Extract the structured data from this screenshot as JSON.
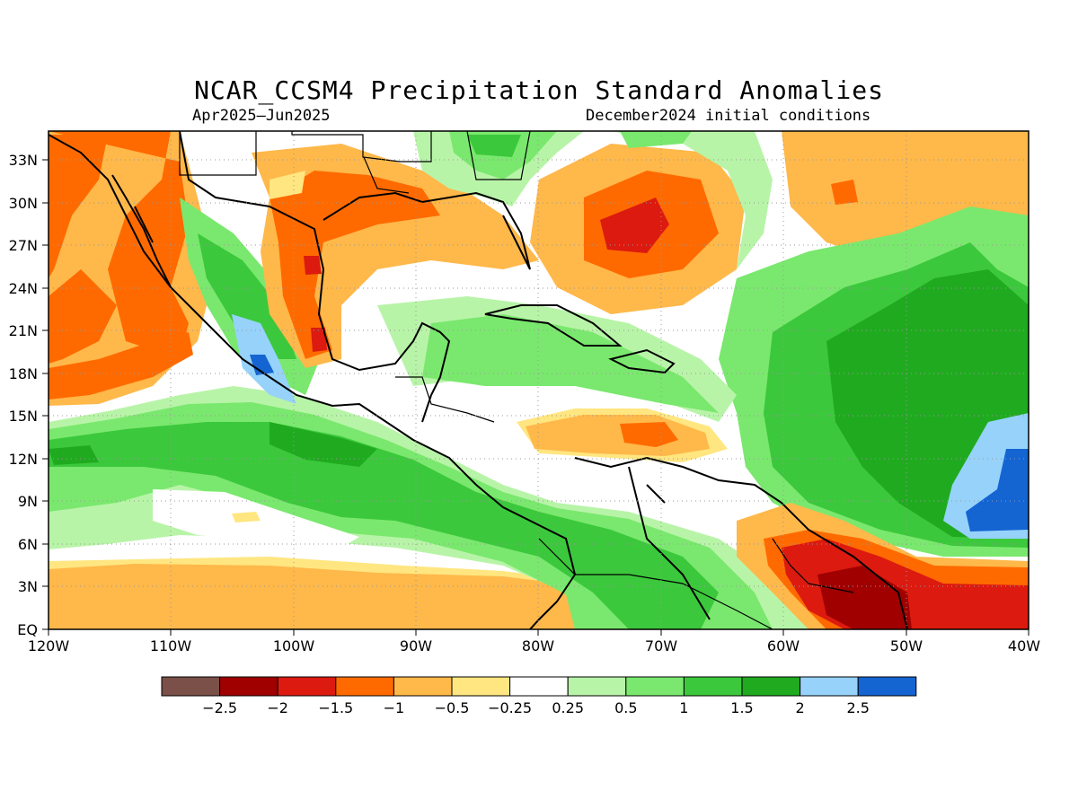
{
  "title": "NCAR_CCSM4 Precipitation Standard Anomalies",
  "subtitle_left": "Apr2025–Jun2025",
  "subtitle_right": "December2024 initial conditions",
  "map": {
    "lat_labels": [
      "33N",
      "30N",
      "27N",
      "24N",
      "21N",
      "18N",
      "15N",
      "12N",
      "9N",
      "6N",
      "3N",
      "EQ"
    ],
    "lon_labels": [
      "120W",
      "110W",
      "100W",
      "90W",
      "80W",
      "70W",
      "60W",
      "50W",
      "40W"
    ],
    "lon_range": [
      -120,
      -40
    ],
    "lat_range": [
      0,
      35
    ],
    "grid": "dotted"
  },
  "legend": {
    "labels": [
      "−2.5",
      "−2",
      "−1.5",
      "−1",
      "−0.5",
      "−0.25",
      "0.25",
      "0.5",
      "1",
      "1.5",
      "2",
      "2.5"
    ],
    "colors": [
      "#7a5048",
      "#a00000",
      "#dc1a10",
      "#ff6a00",
      "#ffb84a",
      "#ffe680",
      "#ffffff",
      "#b8f4a8",
      "#7ae86e",
      "#3cc83c",
      "#20aa20",
      "#96d2fa",
      "#1464d2"
    ]
  }
}
